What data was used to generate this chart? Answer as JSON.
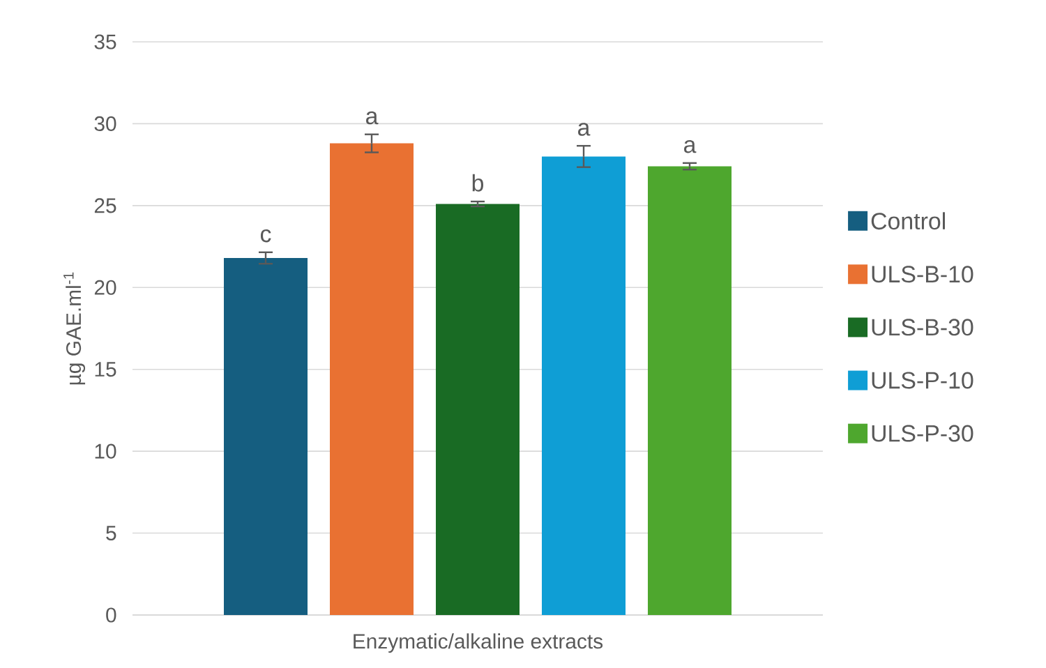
{
  "chart_data": {
    "type": "bar",
    "ylabel": "µg GAE.ml$^{-1}$",
    "categories": [
      "Enzymatic/alkaline extracts"
    ],
    "series": [
      {
        "name": "Control",
        "color": "#155e80",
        "values": [
          21.8
        ],
        "errors": [
          0.35
        ],
        "value_labels": [
          "c"
        ]
      },
      {
        "name": "ULS-B-10",
        "color": "#e97132",
        "values": [
          28.8
        ],
        "errors": [
          0.55
        ],
        "value_labels": [
          "a"
        ]
      },
      {
        "name": "ULS-B-30",
        "color": "#196b24",
        "values": [
          25.1
        ],
        "errors": [
          0.15
        ],
        "value_labels": [
          "b"
        ]
      },
      {
        "name": "ULS-P-10",
        "color": "#0f9ed5",
        "values": [
          28.0
        ],
        "errors": [
          0.65
        ],
        "value_labels": [
          "a"
        ]
      },
      {
        "name": "ULS-P-30",
        "color": "#4ea72e",
        "values": [
          27.4
        ],
        "errors": [
          0.2
        ],
        "value_labels": [
          "a"
        ]
      }
    ],
    "ylim": [
      0,
      35
    ],
    "yticks": [
      0,
      5,
      10,
      15,
      20,
      25,
      30,
      35
    ],
    "grid": "y",
    "legend": "right"
  }
}
